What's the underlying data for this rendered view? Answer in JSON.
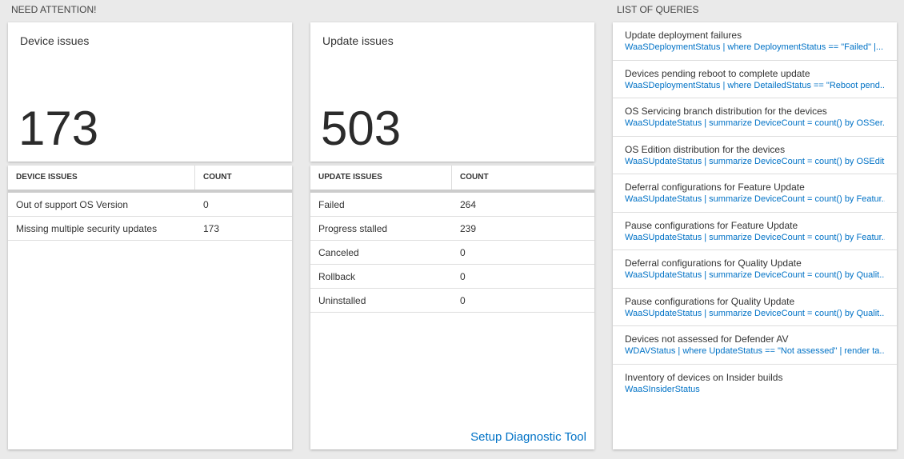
{
  "sections": {
    "attention_title": "NEED ATTENTION!",
    "queries_title": "LIST OF QUERIES"
  },
  "tiles": [
    {
      "title": "Device issues",
      "total": 173,
      "table": {
        "headers": [
          "DEVICE ISSUES",
          "COUNT"
        ],
        "rows": [
          [
            "Out of support OS Version",
            0
          ],
          [
            "Missing multiple security updates",
            173
          ]
        ]
      }
    },
    {
      "title": "Update issues",
      "total": 503,
      "table": {
        "headers": [
          "UPDATE ISSUES",
          "COUNT"
        ],
        "rows": [
          [
            "Failed",
            264
          ],
          [
            "Progress stalled",
            239
          ],
          [
            "Canceled",
            0
          ],
          [
            "Rollback",
            0
          ],
          [
            "Uninstalled",
            0
          ]
        ]
      }
    }
  ],
  "link": "Setup Diagnostic Tool",
  "queries": [
    {
      "name": "Update deployment failures",
      "query": "WaaSDeploymentStatus | where DeploymentStatus == \"Failed\" |..."
    },
    {
      "name": "Devices pending reboot to complete update",
      "query": "WaaSDeploymentStatus | where DetailedStatus == \"Reboot pend..."
    },
    {
      "name": "OS Servicing branch distribution for the devices",
      "query": "WaaSUpdateStatus | summarize DeviceCount = count() by OSSer..."
    },
    {
      "name": "OS Edition distribution for the devices",
      "query": "WaaSUpdateStatus | summarize DeviceCount = count() by OSEdit..."
    },
    {
      "name": "Deferral configurations for Feature Update",
      "query": "WaaSUpdateStatus | summarize DeviceCount = count() by Featur..."
    },
    {
      "name": "Pause configurations for Feature Update",
      "query": "WaaSUpdateStatus | summarize DeviceCount = count() by Featur..."
    },
    {
      "name": "Deferral configurations for Quality Update",
      "query": "WaaSUpdateStatus | summarize DeviceCount = count() by Qualit..."
    },
    {
      "name": "Pause configurations for Quality Update",
      "query": "WaaSUpdateStatus | summarize DeviceCount = count() by Qualit..."
    },
    {
      "name": "Devices not assessed for Defender AV",
      "query": "WDAVStatus | where UpdateStatus == \"Not assessed\" | render ta..."
    },
    {
      "name": "Inventory of devices on Insider builds",
      "query": "WaaSInsiderStatus"
    }
  ]
}
